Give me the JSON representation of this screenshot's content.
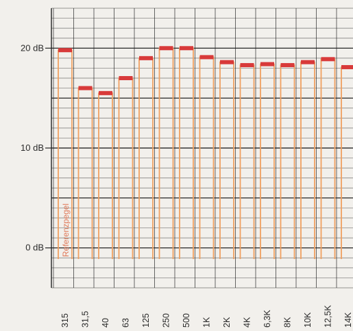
{
  "chart_data": {
    "type": "bar",
    "title": "",
    "xlabel": "",
    "ylabel": "",
    "categories": [
      "315",
      "31,5",
      "40",
      "63",
      "125",
      "250",
      "500",
      "1K",
      "2K",
      "4K",
      "6,3K",
      "8K",
      "10K",
      "12,5K",
      "14K"
    ],
    "values": [
      19.8,
      16.0,
      15.5,
      17.0,
      19.0,
      20.0,
      20.0,
      19.1,
      18.6,
      18.3,
      18.4,
      18.3,
      18.6,
      18.9,
      18.1
    ],
    "y_tick_labels": [
      {
        "value": 0,
        "label": "0 dB"
      },
      {
        "value": 10,
        "label": "10 dB"
      },
      {
        "value": 20,
        "label": "20 dB"
      }
    ],
    "ylim": [
      -4,
      24
    ],
    "grid": true,
    "annotation": "Referenzpegel",
    "colors": {
      "bar_outline": "#f0a060",
      "bar_cap": "#d83a3a",
      "grid": "#222222",
      "background": "#f2f0ec"
    }
  }
}
